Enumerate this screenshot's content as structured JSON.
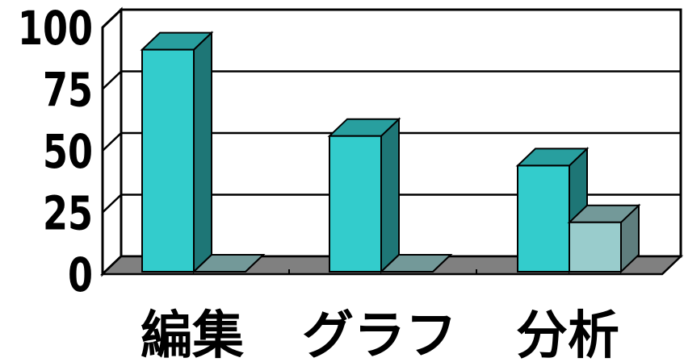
{
  "chart_data": {
    "type": "bar",
    "style": "3d-clustered-column",
    "categories": [
      "編集",
      "グラフ",
      "分析"
    ],
    "series": [
      {
        "values": [
          90,
          55,
          43
        ],
        "color": "#33CCCC"
      },
      {
        "values": [
          0,
          0,
          20
        ],
        "color": "#99CCCC"
      }
    ],
    "yticks": [
      "0",
      "25",
      "50",
      "75",
      "100"
    ],
    "ylim": [
      0,
      100
    ],
    "grid": true,
    "legend": "none",
    "title": "",
    "xlabel": "",
    "ylabel": ""
  }
}
